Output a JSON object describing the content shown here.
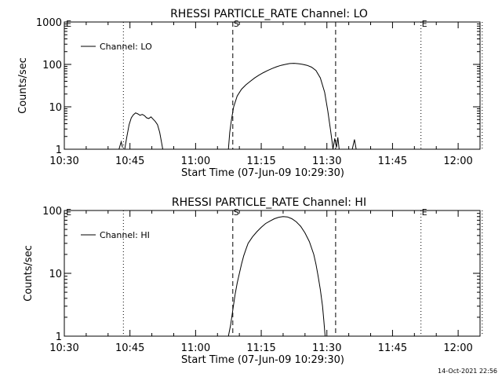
{
  "footer": {
    "timestamp": "14-Oct-2021 22:56"
  },
  "chart_data": [
    {
      "type": "line",
      "title": "RHESSI PARTICLE_RATE Channel: LO",
      "xlabel": "Start Time (07-Jun-09 10:29:30)",
      "ylabel": "Counts/sec",
      "yscale": "log",
      "xlim_minutes": [
        0,
        95
      ],
      "ylim": [
        1,
        1000
      ],
      "x_ticks": [
        {
          "minute": 0,
          "label": "10:30"
        },
        {
          "minute": 15,
          "label": "10:45"
        },
        {
          "minute": 30,
          "label": "11:00"
        },
        {
          "minute": 45,
          "label": "11:15"
        },
        {
          "minute": 60,
          "label": "11:30"
        },
        {
          "minute": 75,
          "label": "11:45"
        },
        {
          "minute": 90,
          "label": "12:00"
        }
      ],
      "y_ticks": [
        {
          "value": 1,
          "label": "1"
        },
        {
          "value": 10,
          "label": "10"
        },
        {
          "value": 100,
          "label": "100"
        },
        {
          "value": 1000,
          "label": "1000"
        }
      ],
      "legend": "Channel: LO",
      "markers": [
        {
          "minute": 13.5,
          "style": "dotted",
          "label": ""
        },
        {
          "minute": 38.5,
          "style": "dashed",
          "label": "S"
        },
        {
          "minute": 62,
          "style": "dashed",
          "label": ""
        },
        {
          "minute": 81.5,
          "style": "dotted",
          "label": "E"
        },
        {
          "minute": 95.5,
          "style": "dotted",
          "label": ""
        }
      ],
      "corner_labels": [
        {
          "minute": 0.2,
          "label": "E"
        }
      ],
      "series": [
        {
          "name": "Channel: LO",
          "segments": [
            [
              [
                12.5,
                1
              ],
              [
                13,
                1.5
              ],
              [
                13.3,
                1.1
              ]
            ],
            [
              [
                13.8,
                1
              ],
              [
                14.3,
                2
              ],
              [
                14.8,
                3.8
              ],
              [
                15.3,
                5.5
              ],
              [
                15.8,
                6.5
              ],
              [
                16.3,
                7.2
              ],
              [
                16.8,
                6.8
              ],
              [
                17.3,
                6.3
              ],
              [
                17.8,
                6.6
              ],
              [
                18.3,
                6.2
              ],
              [
                18.8,
                5.5
              ],
              [
                19.3,
                5.3
              ],
              [
                19.8,
                5.8
              ],
              [
                20.3,
                5.1
              ],
              [
                20.8,
                4.5
              ],
              [
                21.3,
                3.8
              ],
              [
                21.8,
                2.5
              ],
              [
                22.3,
                1.3
              ],
              [
                22.5,
                1
              ]
            ],
            [
              [
                37.5,
                1
              ],
              [
                37.8,
                2.5
              ],
              [
                38.2,
                5
              ],
              [
                38.7,
                10
              ],
              [
                39.5,
                18
              ],
              [
                40.5,
                26
              ],
              [
                41.5,
                33
              ],
              [
                42.5,
                40
              ],
              [
                43.5,
                48
              ],
              [
                44.5,
                56
              ],
              [
                45.5,
                64
              ],
              [
                46.5,
                72
              ],
              [
                47.5,
                80
              ],
              [
                48.5,
                88
              ],
              [
                49.5,
                95
              ],
              [
                50.5,
                100
              ],
              [
                51.5,
                105
              ],
              [
                52.5,
                106
              ],
              [
                53.5,
                104
              ],
              [
                54.5,
                100
              ],
              [
                55.5,
                95
              ],
              [
                56.5,
                86
              ],
              [
                57.5,
                72
              ],
              [
                58.5,
                48
              ],
              [
                59.5,
                22
              ],
              [
                60.2,
                8
              ],
              [
                60.8,
                3
              ],
              [
                61.2,
                1.5
              ],
              [
                61.4,
                1
              ]
            ],
            [
              [
                61.4,
                1
              ],
              [
                61.8,
                1.8
              ],
              [
                62.2,
                1.1
              ],
              [
                62.5,
                1.9
              ],
              [
                62.8,
                1
              ]
            ],
            [
              [
                65.8,
                1
              ],
              [
                66.3,
                1.7
              ],
              [
                66.7,
                1
              ]
            ]
          ]
        }
      ]
    },
    {
      "type": "line",
      "title": "RHESSI PARTICLE_RATE Channel: HI",
      "xlabel": "Start Time (07-Jun-09 10:29:30)",
      "ylabel": "Counts/sec",
      "yscale": "log",
      "xlim_minutes": [
        0,
        95
      ],
      "ylim": [
        1,
        100
      ],
      "x_ticks": [
        {
          "minute": 0,
          "label": "10:30"
        },
        {
          "minute": 15,
          "label": "10:45"
        },
        {
          "minute": 30,
          "label": "11:00"
        },
        {
          "minute": 45,
          "label": "11:15"
        },
        {
          "minute": 60,
          "label": "11:30"
        },
        {
          "minute": 75,
          "label": "11:45"
        },
        {
          "minute": 90,
          "label": "12:00"
        }
      ],
      "y_ticks": [
        {
          "value": 1,
          "label": "1"
        },
        {
          "value": 10,
          "label": "10"
        },
        {
          "value": 100,
          "label": "100"
        }
      ],
      "legend": "Channel: HI",
      "markers": [
        {
          "minute": 13.5,
          "style": "dotted",
          "label": ""
        },
        {
          "minute": 38.5,
          "style": "dashed",
          "label": "S"
        },
        {
          "minute": 62,
          "style": "dashed",
          "label": ""
        },
        {
          "minute": 81.5,
          "style": "dotted",
          "label": "E"
        },
        {
          "minute": 95.5,
          "style": "dotted",
          "label": ""
        }
      ],
      "corner_labels": [
        {
          "minute": 0.2,
          "label": "E"
        }
      ],
      "series": [
        {
          "name": "Channel: HI",
          "segments": [
            [
              [
                37.5,
                1
              ],
              [
                38,
                1.5
              ],
              [
                38.5,
                2.6
              ],
              [
                39,
                4.5
              ],
              [
                39.5,
                7
              ],
              [
                40,
                10
              ],
              [
                40.5,
                14
              ],
              [
                41,
                19
              ],
              [
                41.5,
                24
              ],
              [
                42,
                30
              ],
              [
                43,
                38
              ],
              [
                44,
                46
              ],
              [
                45,
                54
              ],
              [
                46,
                62
              ],
              [
                47,
                68
              ],
              [
                48,
                74
              ],
              [
                49,
                78
              ],
              [
                50,
                80
              ],
              [
                51,
                79
              ],
              [
                52,
                74
              ],
              [
                53,
                66
              ],
              [
                54,
                56
              ],
              [
                55,
                44
              ],
              [
                56,
                32
              ],
              [
                57,
                20
              ],
              [
                57.5,
                14
              ],
              [
                58,
                9
              ],
              [
                58.5,
                5.5
              ],
              [
                59,
                3
              ],
              [
                59.3,
                1.8
              ],
              [
                59.6,
                1
              ]
            ]
          ]
        }
      ]
    }
  ]
}
